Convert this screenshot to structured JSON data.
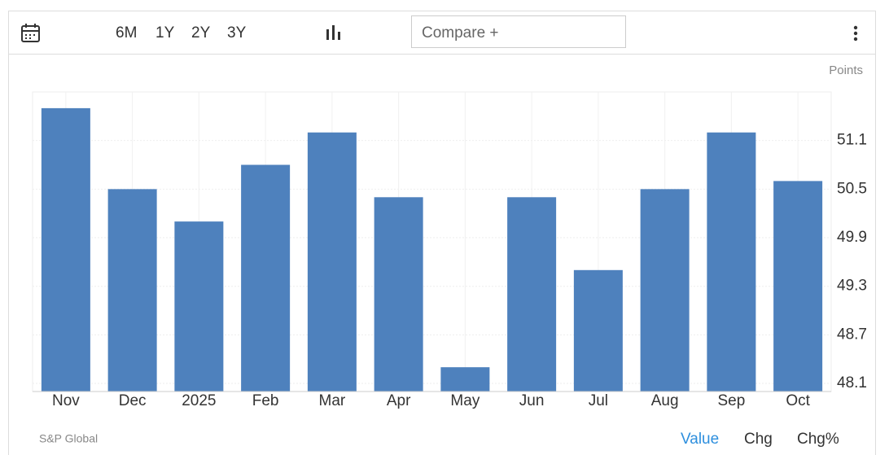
{
  "toolbar": {
    "ranges": [
      "6M",
      "1Y",
      "2Y",
      "3Y"
    ],
    "compare": "Compare +"
  },
  "chart_data": {
    "type": "bar",
    "unit": "Points",
    "categories": [
      "Nov",
      "Dec",
      "2025",
      "Feb",
      "Mar",
      "Apr",
      "May",
      "Jun",
      "Jul",
      "Aug",
      "Sep",
      "Oct"
    ],
    "values": [
      51.5,
      50.5,
      50.1,
      50.8,
      51.2,
      50.4,
      48.3,
      50.4,
      49.5,
      50.5,
      51.2,
      50.6
    ],
    "color": "#4e81bd",
    "ylim": [
      48.0,
      51.7
    ],
    "yticks": [
      48.1,
      48.7,
      49.3,
      49.9,
      50.5,
      51.1
    ],
    "grid": true
  },
  "footer": {
    "source": "S&P Global",
    "views": [
      "Value",
      "Chg",
      "Chg%"
    ]
  }
}
